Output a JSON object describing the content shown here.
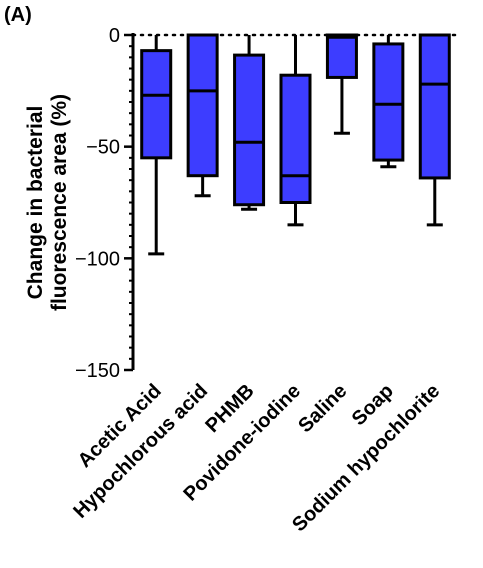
{
  "chart_data": {
    "type": "boxplot",
    "panel_label": "(A)",
    "ylabel_line1": "Change in bacterial",
    "ylabel_line2": "fluorescence area  (%)",
    "ylim": [
      -150,
      0
    ],
    "yticks": [
      0,
      -50,
      -100,
      -150
    ],
    "ytick_labels": [
      "0",
      "−50",
      "−100",
      "−150"
    ],
    "minor_ticks": true,
    "reference_line": 0,
    "box_color": "#3d3dff",
    "categories": [
      "Acetic Acid",
      "Hypochlorous acid",
      "PHMB",
      "Povidone-iodine",
      "Saline",
      "Soap",
      "Sodium hypochlorite"
    ],
    "boxes": [
      {
        "min": -98,
        "q1": -55,
        "median": -27,
        "q3": -7,
        "max": 0
      },
      {
        "min": -72,
        "q1": -63,
        "median": -25,
        "q3": 0,
        "max": 0
      },
      {
        "min": -78,
        "q1": -76,
        "median": -48,
        "q3": -9,
        "max": 0
      },
      {
        "min": -85,
        "q1": -75,
        "median": -63,
        "q3": -18,
        "max": 0
      },
      {
        "min": -44,
        "q1": -19,
        "median": -1,
        "q3": 0,
        "max": 0
      },
      {
        "min": -59,
        "q1": -56,
        "median": -31,
        "q3": -4,
        "max": 0
      },
      {
        "min": -85,
        "q1": -64,
        "median": -22,
        "q3": 0,
        "max": 0
      }
    ]
  }
}
